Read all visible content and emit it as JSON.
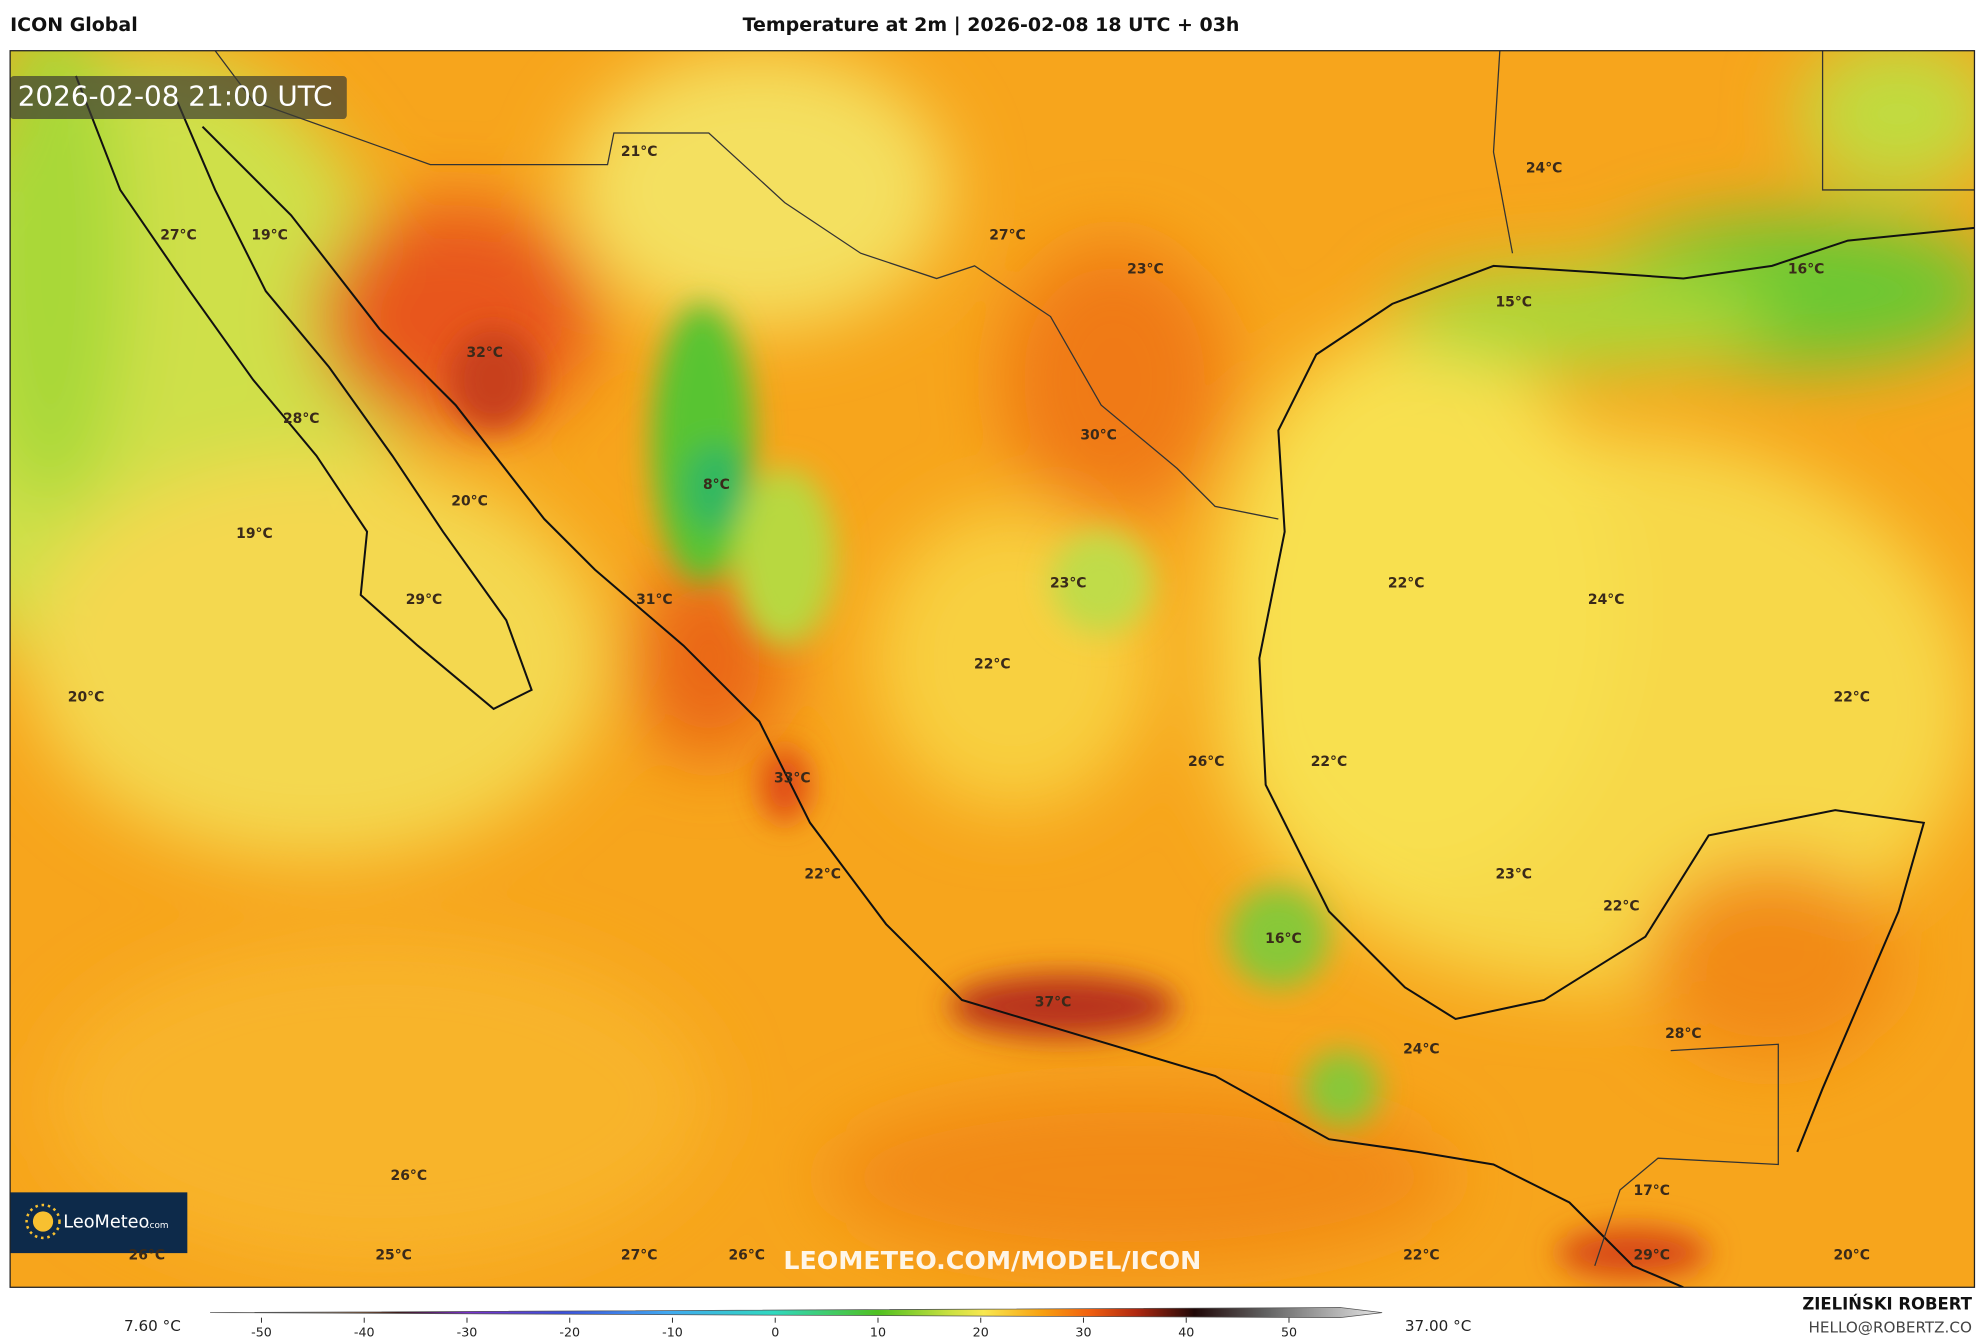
{
  "header": {
    "model": "ICON Global",
    "title": "Temperature at 2m | 2026-02-08 18 UTC + 03h"
  },
  "timestamp": "2026-02-08 21:00 UTC",
  "logo": {
    "name": "LeoMeteo",
    "suffix": ".com"
  },
  "watermark": "LEOMETEO.COM/MODEL/ICON",
  "map_labels": [
    "21°C",
    "24°C",
    "27°C",
    "19°C",
    "27°C",
    "23°C",
    "16°C",
    "15°C",
    "32°C",
    "28°C",
    "30°C",
    "8°C",
    "20°C",
    "19°C",
    "23°C",
    "22°C",
    "29°C",
    "31°C",
    "24°C",
    "22°C",
    "20°C",
    "22°C",
    "26°C",
    "22°C",
    "33°C",
    "22°C",
    "23°C",
    "22°C",
    "16°C",
    "37°C",
    "28°C",
    "24°C",
    "26°C",
    "17°C",
    "26°C",
    "25°C",
    "27°C",
    "26°C",
    "22°C",
    "29°C",
    "20°C"
  ],
  "colorbar": {
    "min_label": "7.60 °C",
    "max_label": "37.00 °C",
    "lim": [
      -55,
      55
    ],
    "ticks": [
      -50,
      -40,
      -30,
      -20,
      -10,
      0,
      10,
      20,
      30,
      40,
      50
    ]
  },
  "credits": {
    "author": "ZIELIŃSKI ROBERT",
    "email": "HELLO@ROBERTZ.CO"
  }
}
